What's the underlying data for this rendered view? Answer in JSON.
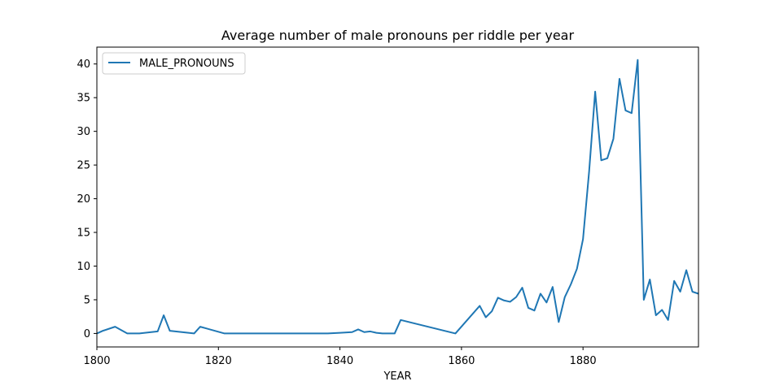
{
  "chart_data": {
    "type": "line",
    "title": "Average number of male pronouns per riddle per year",
    "xlabel": "YEAR",
    "ylabel": "",
    "xlim": [
      1800,
      1899
    ],
    "ylim": [
      -2,
      42.5
    ],
    "x_ticks": [
      1800,
      1820,
      1840,
      1860,
      1880
    ],
    "y_ticks": [
      0,
      5,
      10,
      15,
      20,
      25,
      30,
      35,
      40
    ],
    "grid": false,
    "legend": "top-left",
    "series": [
      {
        "name": "MALE_PRONOUNS",
        "color": "#1f77b4",
        "x": [
          1800,
          1801,
          1803,
          1805,
          1807,
          1810,
          1811,
          1812,
          1816,
          1817,
          1821,
          1838,
          1840,
          1842,
          1843,
          1844,
          1845,
          1846,
          1847,
          1849,
          1850,
          1859,
          1863,
          1864,
          1865,
          1866,
          1867,
          1868,
          1869,
          1870,
          1871,
          1872,
          1873,
          1874,
          1875,
          1876,
          1877,
          1878,
          1879,
          1880,
          1881,
          1882,
          1883,
          1884,
          1885,
          1886,
          1887,
          1888,
          1889,
          1890,
          1891,
          1892,
          1893,
          1894,
          1895,
          1896,
          1897,
          1898,
          1899
        ],
        "values": [
          0.0,
          0.4,
          1.0,
          0.0,
          0.0,
          0.3,
          2.7,
          0.4,
          0.0,
          1.0,
          0.0,
          0.0,
          0.1,
          0.2,
          0.6,
          0.2,
          0.3,
          0.1,
          0.0,
          0.0,
          2.0,
          0.0,
          4.1,
          2.4,
          3.3,
          5.3,
          4.9,
          4.7,
          5.4,
          6.8,
          3.8,
          3.4,
          5.9,
          4.6,
          6.9,
          1.7,
          5.4,
          7.3,
          9.6,
          14.0,
          24.0,
          35.9,
          25.7,
          26.0,
          28.9,
          37.8,
          33.1,
          32.7,
          40.6,
          5.0,
          8.0,
          2.7,
          3.5,
          2.0,
          7.8,
          6.2,
          9.4,
          6.2,
          5.9
        ]
      }
    ]
  }
}
